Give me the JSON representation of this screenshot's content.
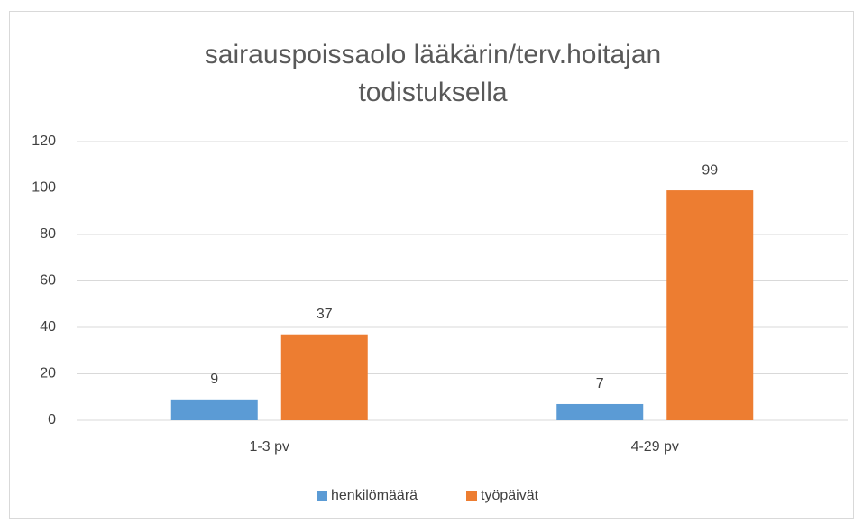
{
  "chart_data": {
    "type": "bar",
    "title": "sairauspoissaolo lääkärin/terv.hoitajan todistuksella",
    "categories": [
      "1-3 pv",
      "4-29 pv"
    ],
    "series": [
      {
        "name": "henkilömäärä",
        "color": "#5b9bd5",
        "values": [
          9,
          7
        ]
      },
      {
        "name": "työpäivät",
        "color": "#ed7d31",
        "values": [
          37,
          99
        ]
      }
    ],
    "ylim": [
      0,
      120
    ],
    "yticks": [
      0,
      20,
      40,
      60,
      80,
      100,
      120
    ],
    "grid": true,
    "legend": "bottom"
  }
}
